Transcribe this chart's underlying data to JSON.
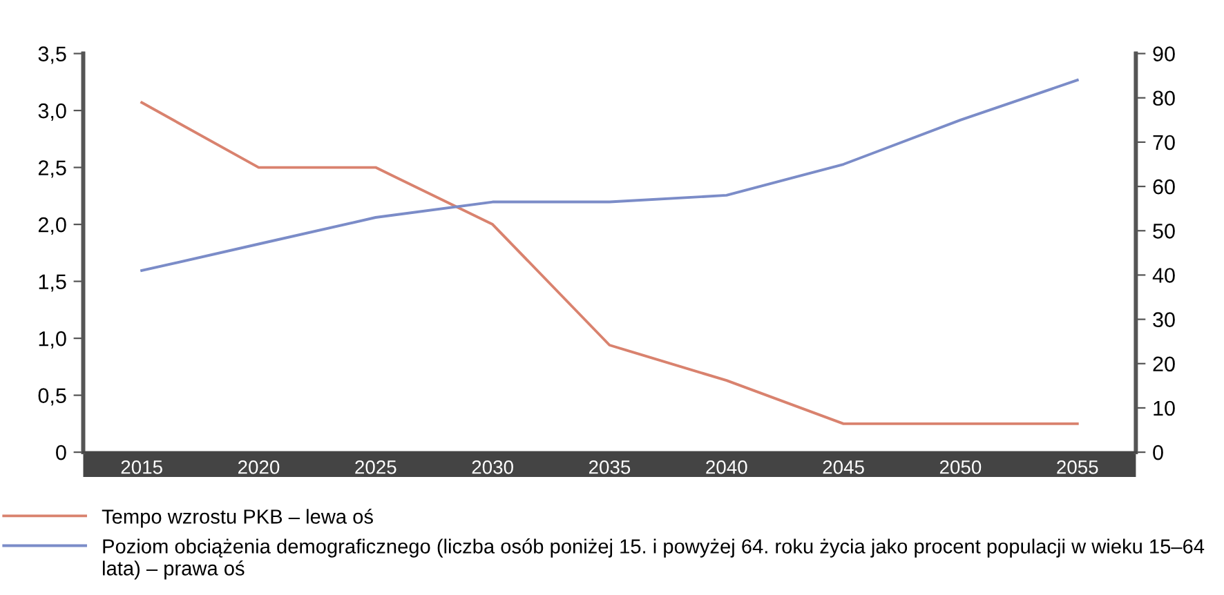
{
  "chart_data": {
    "type": "line",
    "categories": [
      "2015",
      "2020",
      "2025",
      "2030",
      "2035",
      "2040",
      "2045",
      "2050",
      "2055"
    ],
    "series": [
      {
        "name": "Tempo wzrostu PKB – lewa oś",
        "color": "#d9826e",
        "values": [
          3.07,
          2.5,
          2.5,
          2.0,
          0.94,
          0.63,
          0.25,
          0.25,
          0.25
        ]
      },
      {
        "name": "Poziom obciążenia demograficznego (liczba osób poniżej 15. i powyżej 64. roku życia jako procent populacji w wieku 15–64 lata) – prawa oś",
        "color": "#7b8cc8",
        "axis": "y2",
        "values": [
          41,
          47,
          53,
          56.5,
          56.5,
          58,
          65,
          75,
          84
        ]
      }
    ],
    "ylim": [
      0,
      3.5
    ],
    "yticks": [
      {
        "value": 0,
        "label": "0"
      },
      {
        "value": 0.5,
        "label": "0,5"
      },
      {
        "value": 1,
        "label": "1,0"
      },
      {
        "value": 1.5,
        "label": "1,5"
      },
      {
        "value": 2,
        "label": "2,0"
      },
      {
        "value": 2.5,
        "label": "2,5"
      },
      {
        "value": 3,
        "label": "3,0"
      },
      {
        "value": 3.5,
        "label": "3,5"
      }
    ],
    "y2lim": [
      0,
      90
    ],
    "y2ticks": [
      0,
      10,
      20,
      30,
      40,
      50,
      60,
      70,
      80,
      90
    ],
    "legend": "bottom left",
    "grid": false
  }
}
